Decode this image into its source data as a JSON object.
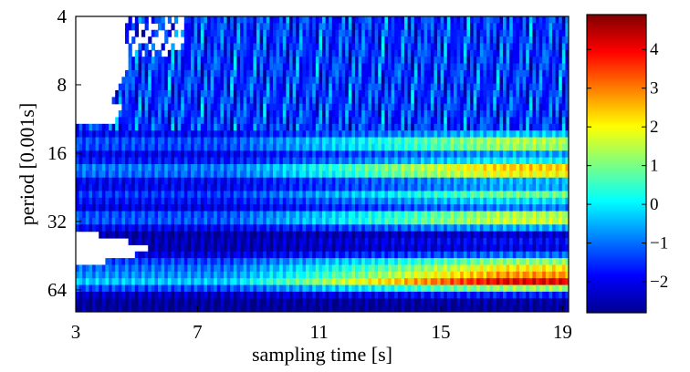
{
  "chart_data": {
    "type": "heatmap",
    "title": "",
    "xlabel": "sampling time [s]",
    "ylabel": "period [0.001s]",
    "x_ticks": [
      3,
      7,
      11,
      15,
      19
    ],
    "y_ticks": [
      4,
      8,
      16,
      32,
      64
    ],
    "xlim": [
      3,
      19.2
    ],
    "ylim": [
      4,
      80
    ],
    "y_scale": "log2",
    "y_direction": "down",
    "grid": false,
    "colormap": "jet",
    "colorbar": {
      "range": [
        -2.8,
        4.9
      ],
      "ticks": [
        4,
        3,
        2,
        1,
        0,
        -1,
        -2
      ],
      "tick_labels": [
        "4",
        "3",
        "2",
        "1",
        "0",
        "−1",
        "−2"
      ],
      "location": "right"
    },
    "bands": [
      {
        "period": 14.5,
        "width_oct": 0.18,
        "value": 1.6
      },
      {
        "period": 19.0,
        "width_oct": 0.17,
        "value": 2.6
      },
      {
        "period": 24.5,
        "width_oct": 0.15,
        "value": 0.9
      },
      {
        "period": 31.0,
        "width_oct": 0.16,
        "value": 1.9
      },
      {
        "period": 40.0,
        "width_oct": 0.12,
        "value": -1.8
      },
      {
        "period": 51.0,
        "width_oct": 0.18,
        "value": 2.1
      },
      {
        "period": 58.0,
        "width_oct": 0.16,
        "value": 4.2
      }
    ]
  }
}
